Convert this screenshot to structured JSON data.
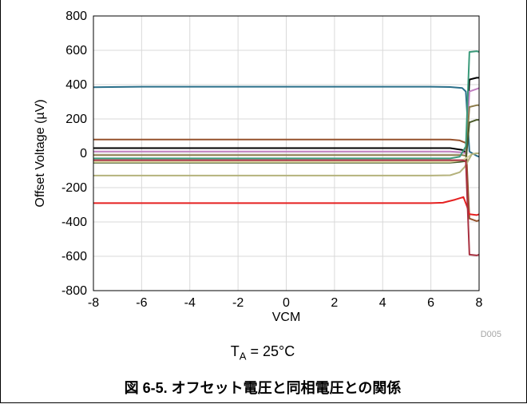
{
  "chart_data": {
    "type": "line",
    "xlabel": "VCM",
    "ylabel": "Offset Voltage (µV)",
    "xlim": [
      -8,
      8
    ],
    "ylim": [
      -800,
      800
    ],
    "xticks": [
      -8,
      -6,
      -4,
      -2,
      0,
      2,
      4,
      6,
      8
    ],
    "yticks": [
      -800,
      -600,
      -400,
      -200,
      0,
      200,
      400,
      600,
      800
    ],
    "grid": true,
    "legend": "none",
    "figure_code": "D005",
    "condition": {
      "prefix": "T",
      "subscript": "A",
      "suffix": " = 25°C"
    },
    "caption": "図 6-5. オフセット電圧と同相電圧との関係",
    "series": [
      {
        "color": "#2a6f8a",
        "x": [
          -8,
          -6,
          -2,
          2,
          6,
          6.8,
          7.3,
          7.45,
          7.6,
          7.9,
          8
        ],
        "y": [
          385,
          388,
          388,
          388,
          388,
          386,
          380,
          360,
          10,
          -15,
          -20
        ]
      },
      {
        "color": "#96522d",
        "x": [
          -8,
          -6,
          -2,
          2,
          6,
          6.8,
          7.2,
          7.45,
          7.6,
          7.9,
          8
        ],
        "y": [
          80,
          80,
          80,
          80,
          80,
          80,
          75,
          60,
          -380,
          -395,
          -390
        ]
      },
      {
        "color": "#000000",
        "x": [
          -8,
          -6,
          -2,
          2,
          6,
          6.8,
          7.3,
          7.45,
          7.6,
          7.9,
          8
        ],
        "y": [
          30,
          30,
          30,
          30,
          30,
          30,
          20,
          5,
          430,
          440,
          440
        ]
      },
      {
        "color": "#c07ec0",
        "x": [
          -8,
          -6,
          -2,
          2,
          6,
          6.8,
          7.3,
          7.45,
          7.6,
          7.9,
          8
        ],
        "y": [
          10,
          10,
          10,
          10,
          10,
          10,
          5,
          0,
          360,
          375,
          380
        ]
      },
      {
        "color": "#8c7b4a",
        "x": [
          -8,
          -6,
          -2,
          2,
          6,
          6.8,
          7.3,
          7.45,
          7.6,
          7.9,
          8
        ],
        "y": [
          -10,
          -10,
          -10,
          -10,
          -10,
          -10,
          -10,
          -15,
          270,
          280,
          280
        ]
      },
      {
        "color": "#3a9a7a",
        "x": [
          -8,
          -6,
          -2,
          2,
          6,
          6.8,
          7.2,
          7.45,
          7.6,
          7.9,
          8
        ],
        "y": [
          -30,
          -30,
          -30,
          -30,
          -30,
          -30,
          -20,
          40,
          590,
          595,
          590
        ]
      },
      {
        "color": "#4a5a2a",
        "x": [
          -8,
          -6,
          -2,
          2,
          6,
          6.8,
          7.2,
          7.45,
          7.6,
          7.9,
          8
        ],
        "y": [
          -55,
          -55,
          -55,
          -55,
          -55,
          -55,
          -50,
          -45,
          180,
          195,
          195
        ]
      },
      {
        "color": "#d9d6a0",
        "x": [
          -8,
          -6,
          -2,
          2,
          6,
          6.8,
          7.3,
          7.5,
          7.7,
          7.9,
          8
        ],
        "y": [
          -50,
          -50,
          -50,
          -50,
          -50,
          -50,
          -40,
          -25,
          -5,
          0,
          0
        ]
      },
      {
        "color": "#b5b27c",
        "x": [
          -8,
          -6,
          -2,
          2,
          6,
          6.8,
          7.2,
          7.4,
          7.7,
          7.9,
          8
        ],
        "y": [
          -130,
          -130,
          -130,
          -130,
          -130,
          -128,
          -110,
          -80,
          -5,
          0,
          0
        ]
      },
      {
        "color": "#e52020",
        "x": [
          -8,
          -6,
          -2,
          2,
          6,
          6.5,
          7.0,
          7.35,
          7.5,
          7.6,
          7.9,
          8
        ],
        "y": [
          -290,
          -290,
          -290,
          -290,
          -290,
          -288,
          -270,
          -255,
          -310,
          -355,
          -360,
          -355
        ]
      },
      {
        "color": "#a83040",
        "x": [
          -8,
          -6,
          -2,
          2,
          6,
          6.8,
          7.3,
          7.45,
          7.6,
          7.9,
          8
        ],
        "y": [
          -40,
          -40,
          -40,
          -40,
          -40,
          -40,
          -40,
          -45,
          -590,
          -595,
          -590
        ]
      }
    ]
  }
}
